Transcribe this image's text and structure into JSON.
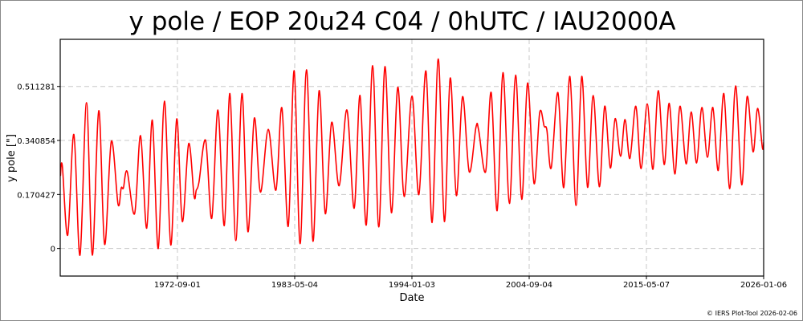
{
  "chart_data": {
    "type": "line",
    "title": "y pole / EOP 20u24 C04 / 0hUTC / IAU2000A",
    "xlabel": "Date",
    "ylabel": "y pole [\"]",
    "x_ticks": [
      "1972-09-01",
      "1983-05-04",
      "1994-01-03",
      "2004-09-04",
      "2015-05-07",
      "2026-01-06"
    ],
    "y_ticks": [
      0,
      0.170427,
      0.340854,
      0.511281
    ],
    "y_tick_labels": [
      "0",
      "0.170427",
      "0.340854",
      "0.511281"
    ],
    "xlim": [
      "1962-01-01",
      "2026-01-06"
    ],
    "ylim": [
      -0.087,
      0.66
    ],
    "grid": true,
    "line_color": "#ff0000",
    "series": [
      {
        "points": [
          [
            1962.02,
            0.229
          ],
          [
            1962.19,
            0.261
          ],
          [
            1962.68,
            0.042
          ],
          [
            1963.24,
            0.36
          ],
          [
            1963.8,
            -0.021
          ],
          [
            1964.39,
            0.46
          ],
          [
            1964.92,
            -0.021
          ],
          [
            1965.51,
            0.435
          ],
          [
            1966.04,
            0.013
          ],
          [
            1966.65,
            0.338
          ],
          [
            1967.26,
            0.14
          ],
          [
            1967.55,
            0.191
          ],
          [
            1967.75,
            0.191
          ],
          [
            1968.09,
            0.243
          ],
          [
            1968.77,
            0.11
          ],
          [
            1969.31,
            0.356
          ],
          [
            1969.87,
            0.064
          ],
          [
            1970.38,
            0.405
          ],
          [
            1970.92,
            0.0
          ],
          [
            1971.48,
            0.465
          ],
          [
            1972.06,
            0.011
          ],
          [
            1972.6,
            0.409
          ],
          [
            1973.11,
            0.085
          ],
          [
            1973.69,
            0.331
          ],
          [
            1974.18,
            0.165
          ],
          [
            1974.38,
            0.184
          ],
          [
            1974.62,
            0.208
          ],
          [
            1975.23,
            0.341
          ],
          [
            1975.79,
            0.095
          ],
          [
            1976.35,
            0.437
          ],
          [
            1976.93,
            0.072
          ],
          [
            1977.44,
            0.489
          ],
          [
            1977.98,
            0.025
          ],
          [
            1978.54,
            0.489
          ],
          [
            1979.08,
            0.053
          ],
          [
            1979.66,
            0.411
          ],
          [
            1980.22,
            0.178
          ],
          [
            1980.93,
            0.376
          ],
          [
            1981.63,
            0.184
          ],
          [
            1982.17,
            0.444
          ],
          [
            1982.75,
            0.07
          ],
          [
            1983.29,
            0.561
          ],
          [
            1983.83,
            0.015
          ],
          [
            1984.41,
            0.564
          ],
          [
            1985.0,
            0.023
          ],
          [
            1985.56,
            0.498
          ],
          [
            1986.12,
            0.11
          ],
          [
            1986.7,
            0.398
          ],
          [
            1987.38,
            0.198
          ],
          [
            1988.09,
            0.437
          ],
          [
            1988.75,
            0.127
          ],
          [
            1989.28,
            0.483
          ],
          [
            1989.85,
            0.074
          ],
          [
            1990.43,
            0.577
          ],
          [
            1990.99,
            0.068
          ],
          [
            1991.55,
            0.574
          ],
          [
            1992.14,
            0.113
          ],
          [
            1992.72,
            0.509
          ],
          [
            1993.3,
            0.164
          ],
          [
            1994.01,
            0.481
          ],
          [
            1994.64,
            0.17
          ],
          [
            1995.28,
            0.56
          ],
          [
            1995.84,
            0.082
          ],
          [
            1996.4,
            0.598
          ],
          [
            1996.96,
            0.085
          ],
          [
            1997.49,
            0.538
          ],
          [
            1998.05,
            0.167
          ],
          [
            1998.61,
            0.479
          ],
          [
            1999.22,
            0.242
          ],
          [
            1999.83,
            0.382
          ],
          [
            2000.08,
            0.373
          ],
          [
            2000.71,
            0.242
          ],
          [
            2001.22,
            0.492
          ],
          [
            2001.76,
            0.119
          ],
          [
            2002.29,
            0.555
          ],
          [
            2002.88,
            0.142
          ],
          [
            2003.44,
            0.547
          ],
          [
            2004.0,
            0.155
          ],
          [
            2004.53,
            0.522
          ],
          [
            2005.12,
            0.205
          ],
          [
            2005.63,
            0.428
          ],
          [
            2006.04,
            0.386
          ],
          [
            2006.29,
            0.373
          ],
          [
            2006.68,
            0.254
          ],
          [
            2007.29,
            0.492
          ],
          [
            2007.82,
            0.192
          ],
          [
            2008.38,
            0.543
          ],
          [
            2008.94,
            0.136
          ],
          [
            2009.46,
            0.543
          ],
          [
            2009.99,
            0.193
          ],
          [
            2010.5,
            0.483
          ],
          [
            2011.06,
            0.195
          ],
          [
            2011.55,
            0.449
          ],
          [
            2012.06,
            0.254
          ],
          [
            2012.5,
            0.41
          ],
          [
            2012.99,
            0.291
          ],
          [
            2013.4,
            0.407
          ],
          [
            2013.84,
            0.284
          ],
          [
            2014.38,
            0.449
          ],
          [
            2014.86,
            0.252
          ],
          [
            2015.42,
            0.456
          ],
          [
            2015.94,
            0.25
          ],
          [
            2016.42,
            0.498
          ],
          [
            2016.96,
            0.265
          ],
          [
            2017.42,
            0.458
          ],
          [
            2017.93,
            0.235
          ],
          [
            2018.4,
            0.449
          ],
          [
            2018.96,
            0.267
          ],
          [
            2019.42,
            0.431
          ],
          [
            2019.91,
            0.27
          ],
          [
            2020.39,
            0.445
          ],
          [
            2020.9,
            0.288
          ],
          [
            2021.39,
            0.445
          ],
          [
            2021.88,
            0.246
          ],
          [
            2022.39,
            0.489
          ],
          [
            2022.93,
            0.189
          ],
          [
            2023.46,
            0.513
          ],
          [
            2024.02,
            0.201
          ],
          [
            2024.51,
            0.479
          ],
          [
            2025.05,
            0.305
          ],
          [
            2025.46,
            0.442
          ],
          [
            2025.9,
            0.318
          ],
          [
            2026.02,
            0.335
          ]
        ]
      }
    ]
  },
  "credit": "© IERS Plot-Tool 2026-02-06"
}
